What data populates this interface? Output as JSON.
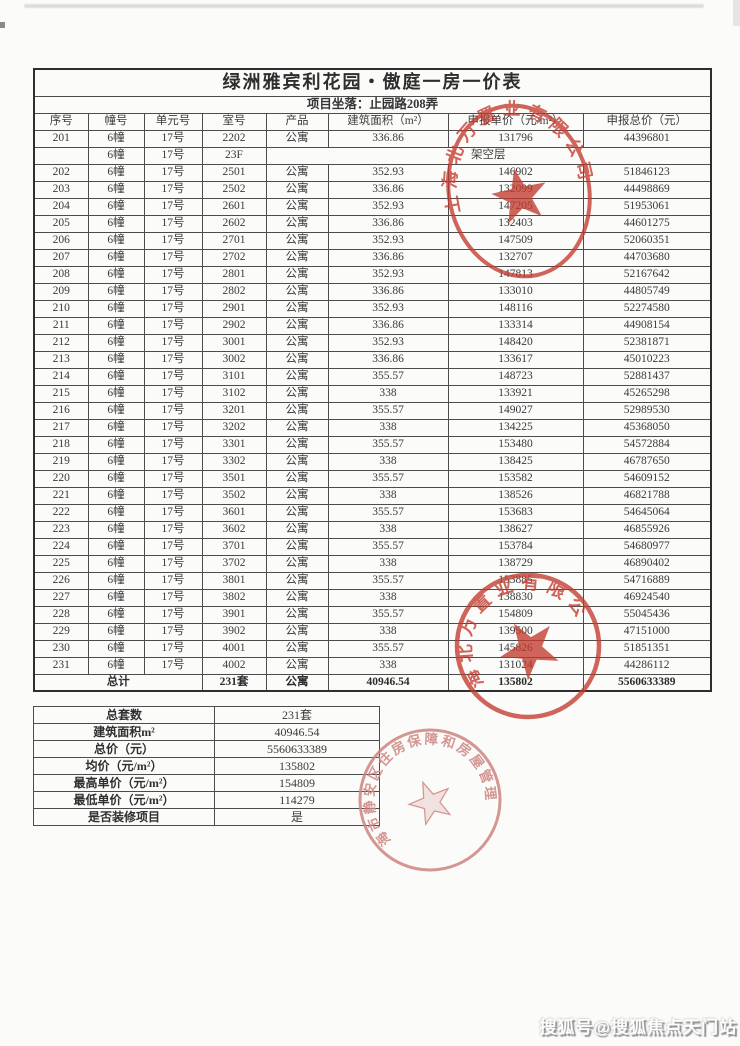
{
  "main_table": {
    "title": "绿洲雅宾利花园・傲庭一房一价表",
    "subtitle": "项目坐落：止园路208弄",
    "headers": [
      "序号",
      "幢号",
      "单元号",
      "室号",
      "产品",
      "建筑面积（m²）",
      "申报单价（元/m²）",
      "申报总价（元）"
    ],
    "rows": [
      [
        "201",
        "6幢",
        "17号",
        "2202",
        "公寓",
        "336.86",
        "131796",
        "44396801"
      ],
      [
        "",
        "6幢",
        "17号",
        "23F",
        {
          "t": "架空层",
          "span": 4
        }
      ],
      [
        "202",
        "6幢",
        "17号",
        "2501",
        "公寓",
        "352.93",
        "146902",
        "51846123"
      ],
      [
        "203",
        "6幢",
        "17号",
        "2502",
        "公寓",
        "336.86",
        "132099",
        "44498869"
      ],
      [
        "204",
        "6幢",
        "17号",
        "2601",
        "公寓",
        "352.93",
        "147205",
        "51953061"
      ],
      [
        "205",
        "6幢",
        "17号",
        "2602",
        "公寓",
        "336.86",
        "132403",
        "44601275"
      ],
      [
        "206",
        "6幢",
        "17号",
        "2701",
        "公寓",
        "352.93",
        "147509",
        "52060351"
      ],
      [
        "207",
        "6幢",
        "17号",
        "2702",
        "公寓",
        "336.86",
        "132707",
        "44703680"
      ],
      [
        "208",
        "6幢",
        "17号",
        "2801",
        "公寓",
        "352.93",
        "147813",
        "52167642"
      ],
      [
        "209",
        "6幢",
        "17号",
        "2802",
        "公寓",
        "336.86",
        "133010",
        "44805749"
      ],
      [
        "210",
        "6幢",
        "17号",
        "2901",
        "公寓",
        "352.93",
        "148116",
        "52274580"
      ],
      [
        "211",
        "6幢",
        "17号",
        "2902",
        "公寓",
        "336.86",
        "133314",
        "44908154"
      ],
      [
        "212",
        "6幢",
        "17号",
        "3001",
        "公寓",
        "352.93",
        "148420",
        "52381871"
      ],
      [
        "213",
        "6幢",
        "17号",
        "3002",
        "公寓",
        "336.86",
        "133617",
        "45010223"
      ],
      [
        "214",
        "6幢",
        "17号",
        "3101",
        "公寓",
        "355.57",
        "148723",
        "52881437"
      ],
      [
        "215",
        "6幢",
        "17号",
        "3102",
        "公寓",
        "338",
        "133921",
        "45265298"
      ],
      [
        "216",
        "6幢",
        "17号",
        "3201",
        "公寓",
        "355.57",
        "149027",
        "52989530"
      ],
      [
        "217",
        "6幢",
        "17号",
        "3202",
        "公寓",
        "338",
        "134225",
        "45368050"
      ],
      [
        "218",
        "6幢",
        "17号",
        "3301",
        "公寓",
        "355.57",
        "153480",
        "54572884"
      ],
      [
        "219",
        "6幢",
        "17号",
        "3302",
        "公寓",
        "338",
        "138425",
        "46787650"
      ],
      [
        "220",
        "6幢",
        "17号",
        "3501",
        "公寓",
        "355.57",
        "153582",
        "54609152"
      ],
      [
        "221",
        "6幢",
        "17号",
        "3502",
        "公寓",
        "338",
        "138526",
        "46821788"
      ],
      [
        "222",
        "6幢",
        "17号",
        "3601",
        "公寓",
        "355.57",
        "153683",
        "54645064"
      ],
      [
        "223",
        "6幢",
        "17号",
        "3602",
        "公寓",
        "338",
        "138627",
        "46855926"
      ],
      [
        "224",
        "6幢",
        "17号",
        "3701",
        "公寓",
        "355.57",
        "153784",
        "54680977"
      ],
      [
        "225",
        "6幢",
        "17号",
        "3702",
        "公寓",
        "338",
        "138729",
        "46890402"
      ],
      [
        "226",
        "6幢",
        "17号",
        "3801",
        "公寓",
        "355.57",
        "153885",
        "54716889"
      ],
      [
        "227",
        "6幢",
        "17号",
        "3802",
        "公寓",
        "338",
        "138830",
        "46924540"
      ],
      [
        "228",
        "6幢",
        "17号",
        "3901",
        "公寓",
        "355.57",
        "154809",
        "55045436"
      ],
      [
        "229",
        "6幢",
        "17号",
        "3902",
        "公寓",
        "338",
        "139500",
        "47151000"
      ],
      [
        "230",
        "6幢",
        "17号",
        "4001",
        "公寓",
        "355.57",
        "145826",
        "51851351"
      ],
      [
        "231",
        "6幢",
        "17号",
        "4002",
        "公寓",
        "338",
        "131024",
        "44286112"
      ]
    ],
    "totals_row": [
      {
        "t": "总计",
        "span": 3
      },
      "231套",
      "公寓",
      "40946.54",
      "135802",
      "5560633389"
    ]
  },
  "summary_table": {
    "rows": [
      [
        "总套数",
        "231套"
      ],
      [
        "建筑面积m²",
        "40946.54"
      ],
      [
        "总价（元）",
        "5560633389"
      ],
      [
        "均价（元/m²）",
        "135802"
      ],
      [
        "最高单价（元/m²）",
        "154809"
      ],
      [
        "最低单价（元/m²）",
        "114279"
      ],
      [
        "是否装修项目",
        "是"
      ]
    ]
  },
  "stamps": [
    {
      "text": "上海北万置业有限公司",
      "color": "#c23a2e"
    },
    {
      "text": "上海北万置业有限公司",
      "color": "#c23a2e"
    },
    {
      "text": "上海市静安区住房保障和房屋管理局",
      "color": "#cd8580"
    }
  ],
  "watermark": {
    "text": "搜狐号@搜狐焦点天门站"
  }
}
